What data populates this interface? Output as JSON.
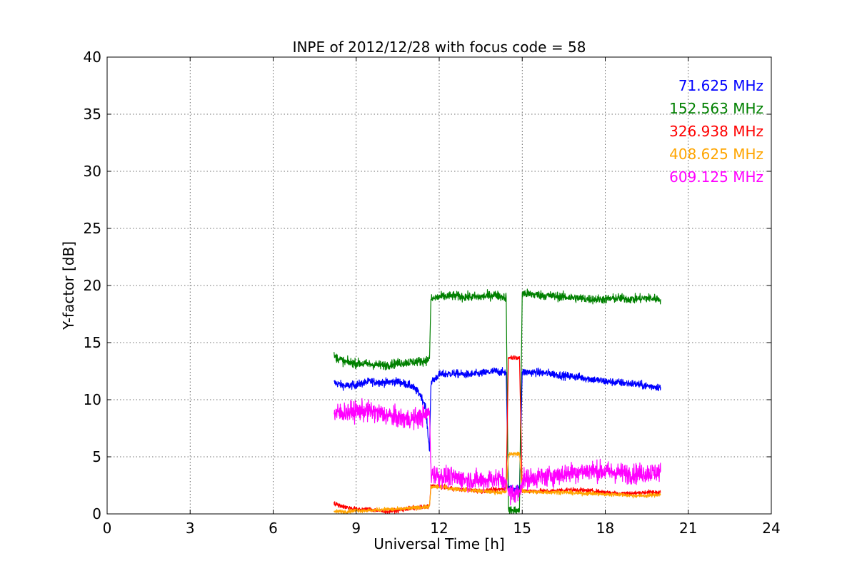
{
  "chart_data": {
    "type": "line",
    "title": "INPE of 2012/12/28 with focus code = 58",
    "xlabel": "Universal Time [h]",
    "ylabel": "Y-factor [dB]",
    "xlim": [
      0,
      24
    ],
    "ylim": [
      0,
      40
    ],
    "xticks": [
      0,
      3,
      6,
      9,
      12,
      15,
      18,
      21,
      24
    ],
    "yticks": [
      0,
      5,
      10,
      15,
      20,
      25,
      30,
      35,
      40
    ],
    "grid": true,
    "legend_placement": "top-right",
    "series": [
      {
        "name": "71.625 MHz",
        "color": "#0000ff",
        "noise": 0.35,
        "x": [
          8.2,
          8.6,
          9.0,
          9.5,
          10.0,
          10.5,
          11.0,
          11.3,
          11.5,
          11.65,
          11.7,
          12.0,
          12.5,
          13.0,
          13.5,
          14.0,
          14.3,
          14.42,
          14.5,
          14.9,
          15.0,
          15.5,
          16.0,
          16.5,
          17.0,
          17.5,
          18.0,
          18.5,
          19.0,
          19.5,
          20.0
        ],
        "y": [
          11.5,
          11.2,
          11.3,
          11.6,
          11.5,
          11.6,
          11.2,
          10.5,
          9.5,
          5.5,
          11.5,
          12.2,
          12.3,
          12.2,
          12.3,
          12.5,
          12.4,
          12.4,
          2.2,
          2.2,
          12.4,
          12.4,
          12.3,
          12.1,
          12.0,
          11.8,
          11.6,
          11.5,
          11.4,
          11.2,
          11.1
        ]
      },
      {
        "name": "152.563 MHz",
        "color": "#008000",
        "noise": 0.4,
        "x": [
          8.2,
          8.6,
          9.0,
          9.5,
          10.0,
          10.5,
          11.0,
          11.5,
          11.65,
          11.7,
          12.0,
          12.5,
          13.0,
          13.5,
          14.0,
          14.3,
          14.42,
          14.5,
          14.9,
          15.0,
          15.5,
          16.0,
          16.5,
          17.0,
          17.5,
          18.0,
          18.5,
          19.0,
          19.5,
          20.0
        ],
        "y": [
          13.8,
          13.3,
          13.2,
          13.1,
          13.0,
          13.2,
          13.3,
          13.4,
          13.6,
          18.8,
          19.0,
          19.1,
          19.0,
          19.0,
          19.2,
          19.0,
          19.0,
          0.3,
          0.3,
          19.3,
          19.2,
          19.1,
          19.0,
          18.9,
          18.8,
          18.8,
          18.9,
          18.8,
          18.9,
          18.8
        ]
      },
      {
        "name": "326.938 MHz",
        "color": "#ff0000",
        "noise": 0.2,
        "x": [
          8.2,
          8.6,
          9.0,
          9.5,
          10.0,
          10.5,
          11.0,
          11.5,
          11.65,
          11.7,
          12.0,
          12.5,
          13.0,
          13.5,
          14.0,
          14.3,
          14.42,
          14.5,
          14.9,
          15.0,
          15.5,
          16.0,
          16.5,
          17.0,
          17.5,
          18.0,
          18.5,
          19.0,
          19.5,
          20.0
        ],
        "y": [
          0.9,
          0.6,
          0.4,
          0.4,
          0.2,
          0.3,
          0.5,
          0.6,
          0.7,
          2.5,
          2.4,
          2.2,
          2.1,
          2.0,
          2.1,
          2.2,
          2.2,
          13.7,
          13.7,
          2.0,
          2.0,
          2.0,
          2.1,
          2.1,
          2.0,
          1.9,
          1.8,
          1.8,
          1.9,
          1.9
        ]
      },
      {
        "name": "408.625 MHz",
        "color": "#ffa500",
        "noise": 0.18,
        "x": [
          8.2,
          8.6,
          9.0,
          9.5,
          10.0,
          10.5,
          11.0,
          11.5,
          11.65,
          11.7,
          12.0,
          12.5,
          13.0,
          13.5,
          14.0,
          14.3,
          14.42,
          14.5,
          14.9,
          15.0,
          15.5,
          16.0,
          16.5,
          17.0,
          17.5,
          18.0,
          18.5,
          19.0,
          19.5,
          20.0
        ],
        "y": [
          0.2,
          0.2,
          0.3,
          0.3,
          0.4,
          0.4,
          0.5,
          0.6,
          0.7,
          2.3,
          2.4,
          2.2,
          2.1,
          2.0,
          1.9,
          1.9,
          1.9,
          5.2,
          5.3,
          2.0,
          1.9,
          1.9,
          1.9,
          1.8,
          1.8,
          1.7,
          1.7,
          1.6,
          1.6,
          1.7
        ]
      },
      {
        "name": "609.125 MHz",
        "color": "#ff00ff",
        "noise": 0.9,
        "x": [
          8.2,
          8.6,
          9.0,
          9.5,
          10.0,
          10.5,
          11.0,
          11.5,
          11.65,
          11.7,
          12.0,
          12.5,
          13.0,
          13.5,
          14.0,
          14.3,
          14.42,
          14.5,
          14.9,
          15.0,
          15.5,
          16.0,
          16.5,
          17.0,
          17.5,
          18.0,
          18.5,
          19.0,
          19.5,
          20.0
        ],
        "y": [
          8.8,
          8.9,
          9.0,
          9.0,
          8.7,
          8.4,
          8.3,
          8.6,
          9.0,
          3.6,
          3.3,
          3.2,
          3.0,
          2.9,
          3.1,
          3.0,
          3.0,
          1.8,
          1.8,
          3.0,
          3.2,
          3.3,
          3.5,
          3.7,
          3.8,
          3.7,
          3.6,
          3.5,
          3.6,
          3.7
        ]
      }
    ]
  }
}
